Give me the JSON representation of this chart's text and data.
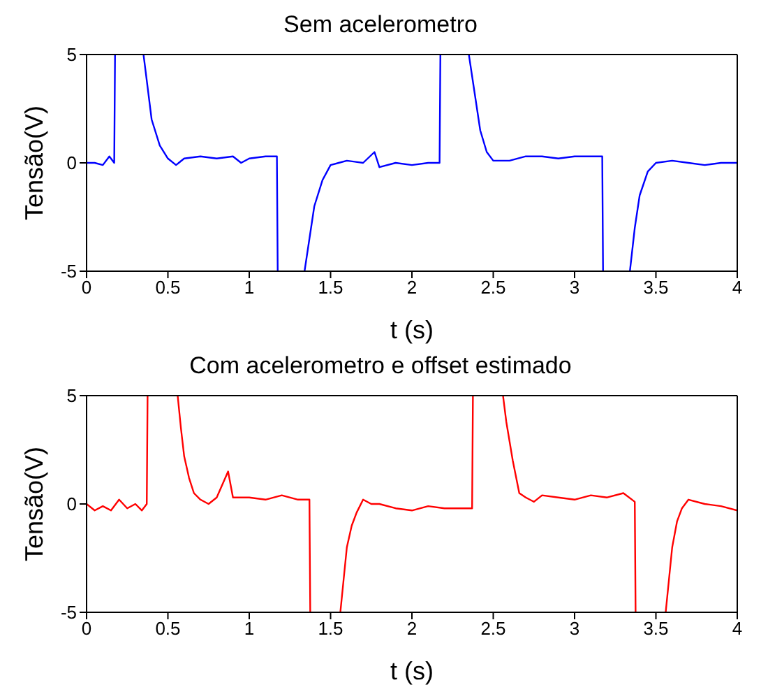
{
  "chart_data": [
    {
      "type": "line",
      "title": "Sem acelerometro",
      "xlabel": "t (s)",
      "ylabel": "Tensão(V)",
      "xlim": [
        0,
        4
      ],
      "ylim": [
        -5,
        5
      ],
      "xticks": [
        0,
        0.5,
        1,
        1.5,
        2,
        2.5,
        3,
        3.5,
        4
      ],
      "yticks": [
        -5,
        0,
        5
      ],
      "grid": false,
      "legend": false,
      "x": [
        0,
        0.05,
        0.1,
        0.14,
        0.17,
        0.175,
        0.26,
        0.35,
        0.37,
        0.4,
        0.45,
        0.5,
        0.55,
        0.6,
        0.7,
        0.8,
        0.9,
        0.95,
        1.0,
        1.1,
        1.17,
        1.175,
        1.26,
        1.34,
        1.37,
        1.4,
        1.45,
        1.5,
        1.55,
        1.6,
        1.7,
        1.77,
        1.8,
        1.9,
        2.0,
        2.1,
        2.17,
        2.175,
        2.26,
        2.35,
        2.38,
        2.42,
        2.46,
        2.5,
        2.6,
        2.7,
        2.8,
        2.9,
        3.0,
        3.1,
        3.17,
        3.175,
        3.26,
        3.34,
        3.37,
        3.4,
        3.45,
        3.5,
        3.6,
        3.7,
        3.8,
        3.9,
        4.0
      ],
      "series": [
        {
          "color": "#0000ff",
          "values": [
            0,
            0,
            -0.1,
            0.3,
            0,
            5,
            null,
            5,
            3.8,
            2,
            0.8,
            0.2,
            -0.1,
            0.2,
            0.3,
            0.2,
            0.3,
            0,
            0.2,
            0.3,
            0.3,
            -5,
            null,
            -5,
            -3.5,
            -2,
            -0.8,
            -0.1,
            0,
            0.1,
            0,
            0.5,
            -0.2,
            0,
            -0.1,
            0,
            0,
            5,
            null,
            5,
            3.5,
            1.5,
            0.5,
            0.1,
            0.1,
            0.3,
            0.3,
            0.2,
            0.3,
            0.3,
            0.3,
            -5,
            null,
            -5,
            -3,
            -1.5,
            -0.4,
            0,
            0.1,
            0,
            -0.1,
            0,
            0
          ]
        }
      ]
    },
    {
      "type": "line",
      "title": "Com acelerometro e offset estimado",
      "xlabel": "t (s)",
      "ylabel": "Tensão(V)",
      "xlim": [
        0,
        4
      ],
      "ylim": [
        -5,
        5
      ],
      "xticks": [
        0,
        0.5,
        1,
        1.5,
        2,
        2.5,
        3,
        3.5,
        4
      ],
      "yticks": [
        -5,
        0,
        5
      ],
      "grid": false,
      "legend": false,
      "x": [
        0,
        0.05,
        0.1,
        0.15,
        0.2,
        0.25,
        0.3,
        0.34,
        0.37,
        0.375,
        0.46,
        0.56,
        0.58,
        0.6,
        0.63,
        0.66,
        0.7,
        0.75,
        0.8,
        0.87,
        0.9,
        1.0,
        1.1,
        1.2,
        1.3,
        1.37,
        1.375,
        1.46,
        1.56,
        1.58,
        1.6,
        1.63,
        1.66,
        1.7,
        1.75,
        1.8,
        1.9,
        2.0,
        2.1,
        2.2,
        2.3,
        2.37,
        2.375,
        2.46,
        2.56,
        2.58,
        2.62,
        2.66,
        2.7,
        2.75,
        2.8,
        2.9,
        3.0,
        3.1,
        3.2,
        3.3,
        3.37,
        3.375,
        3.46,
        3.56,
        3.58,
        3.6,
        3.63,
        3.66,
        3.7,
        3.8,
        3.9,
        4.0
      ],
      "series": [
        {
          "color": "#ff0000",
          "values": [
            0,
            -0.3,
            -0.1,
            -0.3,
            0.2,
            -0.2,
            0,
            -0.3,
            0,
            5,
            null,
            5,
            3.5,
            2.2,
            1.2,
            0.5,
            0.2,
            0,
            0.3,
            1.5,
            0.3,
            0.3,
            0.2,
            0.4,
            0.2,
            0.2,
            -5,
            null,
            -5,
            -3.5,
            -2,
            -1,
            -0.4,
            0.2,
            0,
            0,
            -0.2,
            -0.3,
            -0.1,
            -0.2,
            -0.2,
            -0.2,
            5,
            null,
            5,
            3.8,
            2,
            0.5,
            0.3,
            0.1,
            0.4,
            0.3,
            0.2,
            0.4,
            0.3,
            0.5,
            0.1,
            -5,
            null,
            -5,
            -3.5,
            -2,
            -0.8,
            -0.2,
            0.2,
            0,
            -0.1,
            -0.3
          ]
        }
      ]
    }
  ]
}
